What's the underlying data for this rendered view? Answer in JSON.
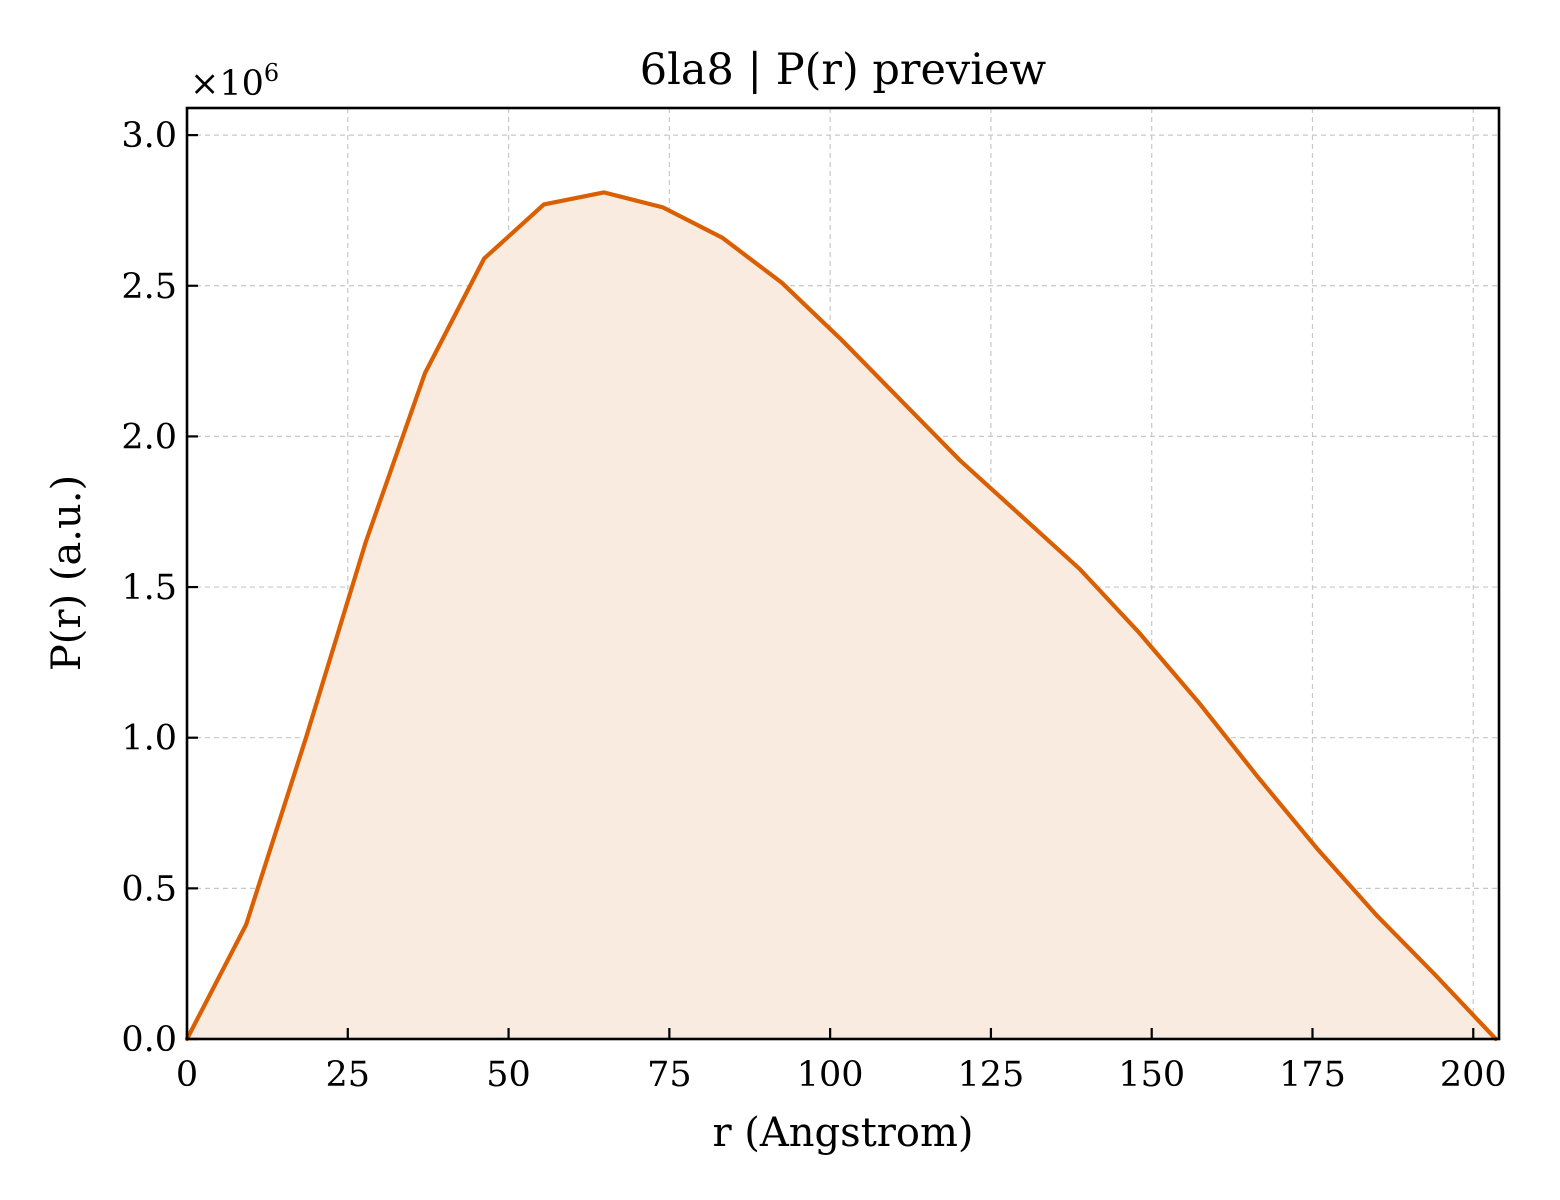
{
  "chart_data": {
    "type": "area",
    "title": "6la8 | P(r) preview",
    "xlabel": "r (Angstrom)",
    "ylabel": "P(r) (a.u.)",
    "y_offset_label": {
      "base": "×10",
      "exponent": "6"
    },
    "xlim": [
      0,
      204
    ],
    "ylim": [
      0,
      3.09
    ],
    "y_scale_factor": 1000000,
    "x_ticks": [
      0,
      25,
      50,
      75,
      100,
      125,
      150,
      175,
      200
    ],
    "x_tick_labels": [
      "0",
      "25",
      "50",
      "75",
      "100",
      "125",
      "150",
      "175",
      "200"
    ],
    "y_ticks": [
      0,
      0.5,
      1.0,
      1.5,
      2.0,
      2.5,
      3.0
    ],
    "y_tick_labels": [
      "0.0",
      "0.5",
      "1.0",
      "1.5",
      "2.0",
      "2.5",
      "3.0"
    ],
    "grid": true,
    "series": [
      {
        "color": "#d95f02",
        "fill_color": "#f9ebe0",
        "x": [
          0,
          9.2,
          18.5,
          27.8,
          37.0,
          46.2,
          55.5,
          64.8,
          74.0,
          83.2,
          92.5,
          101.8,
          111.0,
          120.2,
          129.5,
          138.8,
          148.0,
          157.2,
          166.5,
          175.8,
          185.0,
          194.2,
          203.5
        ],
        "y": [
          0,
          0.38,
          1.0,
          1.65,
          2.21,
          2.59,
          2.77,
          2.81,
          2.76,
          2.66,
          2.51,
          2.32,
          2.12,
          1.92,
          1.74,
          1.56,
          1.35,
          1.12,
          0.87,
          0.63,
          0.41,
          0.21,
          0.0
        ]
      }
    ]
  }
}
